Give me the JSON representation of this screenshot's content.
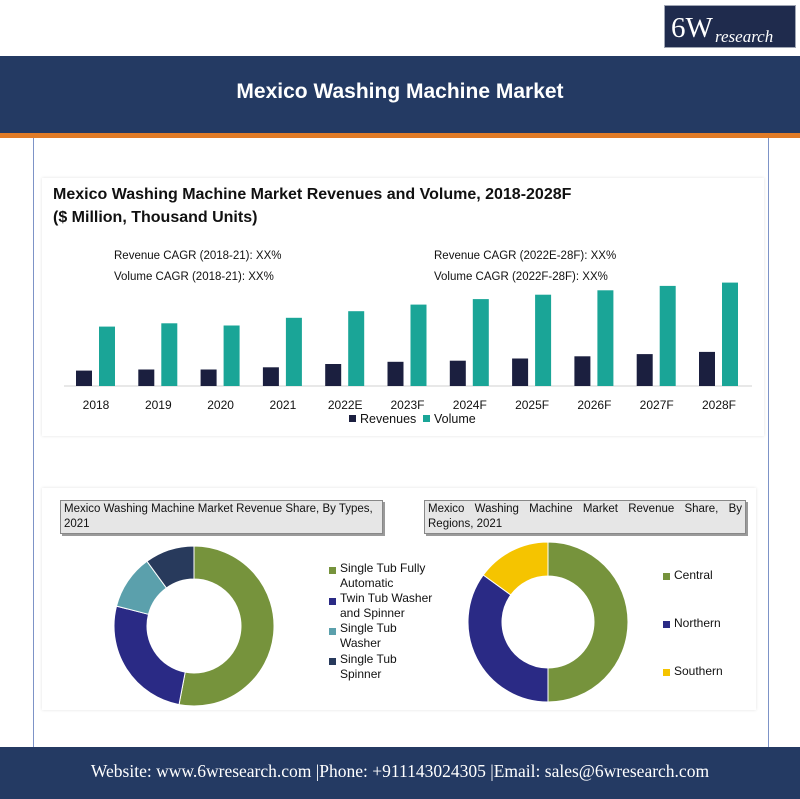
{
  "logo": {
    "big": "6W",
    "small": "research"
  },
  "header": {
    "title": "Mexico Washing Machine Market"
  },
  "bar_chart": {
    "title_line1": "Mexico Washing Machine Market Revenues and Volume, 2018-2028F",
    "title_line2": "($ Million, Thousand Units)",
    "cagr_left": [
      "Revenue CAGR (2018-21): XX%",
      "Volume CAGR (2018-21): XX%"
    ],
    "cagr_right": [
      "Revenue CAGR (2022E-28F): XX%",
      "Volume CAGR (2022F-28F): XX%"
    ],
    "legend": [
      "Revenues",
      "Volume"
    ]
  },
  "donut_left": {
    "title": "Mexico Washing Machine Market Revenue Share, By Types, 2021",
    "legend": [
      "Single Tub Fully Automatic",
      "Twin Tub Washer and Spinner",
      "Single Tub Washer",
      "Single Tub Spinner"
    ]
  },
  "donut_right": {
    "title": "Mexico Washing Machine Market Revenue Share, By Regions, 2021",
    "legend": [
      "Central",
      "Northern",
      "Southern"
    ]
  },
  "colors": {
    "revenues": "#1b1f3f",
    "volume": "#1aa597",
    "green": "#76933c",
    "navy": "#2a2a85",
    "teal": "#5ba0ac",
    "darkblue": "#283a5c",
    "yellow": "#f5c400"
  },
  "footer": {
    "text": "Website: www.6wresearch.com |Phone: +911143024305 |Email: sales@6wresearch.com"
  },
  "chart_data": [
    {
      "type": "bar",
      "title": "Mexico Washing Machine Market Revenues and Volume, 2018-2028F ($ Million, Thousand Units)",
      "categories": [
        "2018",
        "2019",
        "2020",
        "2021",
        "2022E",
        "2023F",
        "2024F",
        "2025F",
        "2026F",
        "2027F",
        "2028F"
      ],
      "series": [
        {
          "name": "Revenues",
          "values": [
            14,
            15,
            15,
            17,
            20,
            22,
            23,
            25,
            27,
            29,
            31
          ]
        },
        {
          "name": "Volume",
          "values": [
            54,
            57,
            55,
            62,
            68,
            74,
            79,
            83,
            87,
            91,
            94
          ]
        }
      ],
      "ylim": [
        0,
        100
      ],
      "xlabel": "",
      "ylabel": "",
      "grid": false,
      "legend": "bottom"
    },
    {
      "type": "pie",
      "title": "Mexico Washing Machine Market Revenue Share, By Types, 2021",
      "labels": [
        "Single Tub Fully Automatic",
        "Twin Tub Washer and Spinner",
        "Single Tub Washer",
        "Single Tub Spinner"
      ],
      "values": [
        53,
        26,
        11,
        10
      ]
    },
    {
      "type": "pie",
      "title": "Mexico Washing Machine Market Revenue Share, By Regions, 2021",
      "labels": [
        "Central",
        "Northern",
        "Southern"
      ],
      "values": [
        50,
        35,
        15
      ]
    }
  ]
}
